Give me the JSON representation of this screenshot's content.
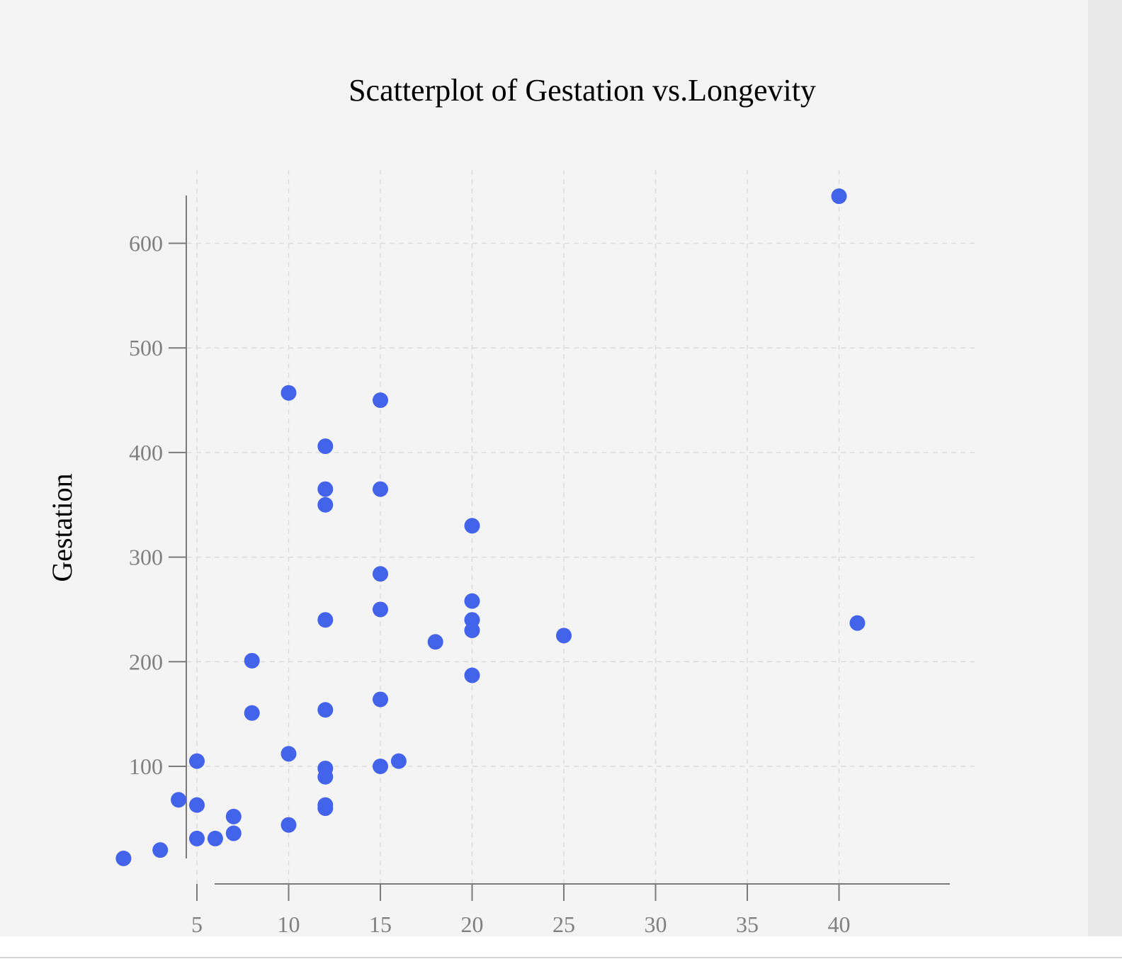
{
  "chart_data": {
    "type": "scatter",
    "title": "Scatterplot of Gestation vs.Longevity",
    "xlabel": "",
    "ylabel": "Gestation",
    "xlim": [
      0.5,
      41.5
    ],
    "ylim": [
      0,
      650
    ],
    "x_ticks": [
      5,
      10,
      15,
      20,
      25,
      30,
      35,
      40
    ],
    "y_ticks": [
      100,
      200,
      300,
      400,
      500,
      600
    ],
    "grid": true,
    "point_color": "#4363eb",
    "points": [
      {
        "x": 1,
        "y": 12
      },
      {
        "x": 3,
        "y": 20
      },
      {
        "x": 4,
        "y": 68
      },
      {
        "x": 5,
        "y": 105
      },
      {
        "x": 5,
        "y": 63
      },
      {
        "x": 5,
        "y": 31
      },
      {
        "x": 6,
        "y": 31
      },
      {
        "x": 7,
        "y": 52
      },
      {
        "x": 7,
        "y": 36
      },
      {
        "x": 8,
        "y": 201
      },
      {
        "x": 8,
        "y": 151
      },
      {
        "x": 10,
        "y": 457
      },
      {
        "x": 10,
        "y": 112
      },
      {
        "x": 10,
        "y": 44
      },
      {
        "x": 12,
        "y": 406
      },
      {
        "x": 12,
        "y": 365
      },
      {
        "x": 12,
        "y": 350
      },
      {
        "x": 12,
        "y": 240
      },
      {
        "x": 12,
        "y": 154
      },
      {
        "x": 12,
        "y": 98
      },
      {
        "x": 12,
        "y": 90
      },
      {
        "x": 12,
        "y": 63
      },
      {
        "x": 12,
        "y": 60
      },
      {
        "x": 15,
        "y": 450
      },
      {
        "x": 15,
        "y": 365
      },
      {
        "x": 15,
        "y": 284
      },
      {
        "x": 15,
        "y": 250
      },
      {
        "x": 15,
        "y": 164
      },
      {
        "x": 15,
        "y": 100
      },
      {
        "x": 16,
        "y": 105
      },
      {
        "x": 18,
        "y": 219
      },
      {
        "x": 20,
        "y": 330
      },
      {
        "x": 20,
        "y": 258
      },
      {
        "x": 20,
        "y": 240
      },
      {
        "x": 20,
        "y": 230
      },
      {
        "x": 20,
        "y": 187
      },
      {
        "x": 25,
        "y": 225
      },
      {
        "x": 40,
        "y": 645
      },
      {
        "x": 41,
        "y": 237
      }
    ]
  }
}
